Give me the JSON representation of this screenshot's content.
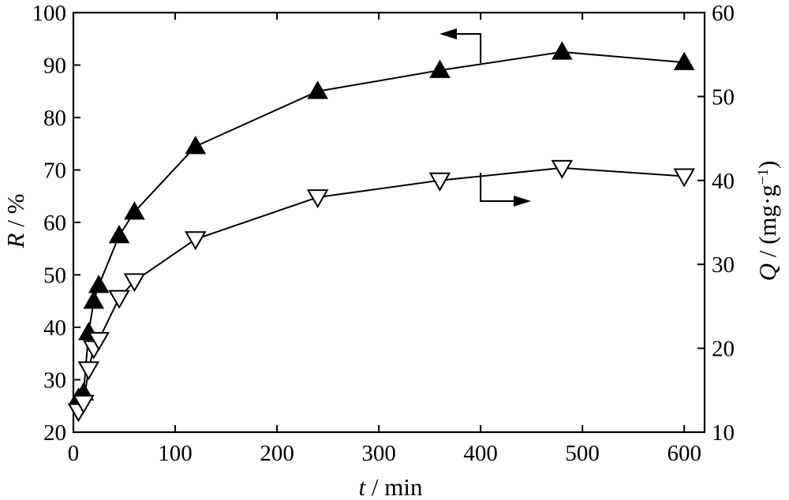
{
  "chart_data": {
    "type": "line",
    "title": "",
    "x_axis": {
      "label_var": "t",
      "label_unit": " / min",
      "range": [
        0,
        620
      ],
      "ticks": [
        0,
        100,
        200,
        300,
        400,
        500,
        600
      ]
    },
    "y_axis_left": {
      "label_var": "R",
      "label_unit": " / %",
      "range": [
        20,
        100
      ],
      "ticks": [
        20,
        30,
        40,
        50,
        60,
        70,
        80,
        90,
        100
      ]
    },
    "y_axis_right": {
      "label_var": "Q",
      "label_unit_pre": " / (mg·g",
      "label_sup": "−1",
      "label_unit_post": ")",
      "range": [
        10,
        60
      ],
      "ticks": [
        10,
        20,
        30,
        40,
        50,
        60
      ]
    },
    "grid": false,
    "series": [
      {
        "axis": "left",
        "marker": "filled-triangle-up",
        "x": [
          5,
          10,
          15,
          20,
          25,
          45,
          60,
          120,
          240,
          360,
          480,
          600
        ],
        "y": [
          26.5,
          27.5,
          39,
          45,
          48,
          57.5,
          62,
          74.5,
          85,
          89,
          92.5,
          90.5
        ]
      },
      {
        "axis": "right",
        "marker": "open-triangle-down",
        "x": [
          5,
          10,
          15,
          20,
          25,
          45,
          60,
          120,
          240,
          360,
          480,
          600
        ],
        "y": [
          12.5,
          13.5,
          17.5,
          20,
          21,
          26,
          28,
          33,
          38,
          40,
          41.5,
          40.5
        ]
      }
    ],
    "annotations": [
      {
        "type": "arrow",
        "direction": "left",
        "points_to_axis": "left"
      },
      {
        "type": "arrow",
        "direction": "right",
        "points_to_axis": "right"
      }
    ]
  }
}
